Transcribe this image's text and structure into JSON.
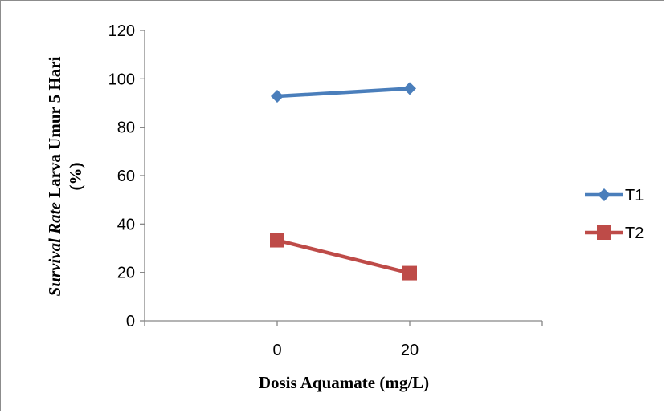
{
  "chart_data": {
    "type": "line",
    "categories": [
      "0",
      "20"
    ],
    "series": [
      {
        "name": "T1",
        "values": [
          92.8,
          96.0
        ],
        "color": "#4a7ebb",
        "marker": "diamond"
      },
      {
        "name": "T2",
        "values": [
          33.3,
          19.7
        ],
        "color": "#be4b48",
        "marker": "square"
      }
    ],
    "ylim": [
      0,
      120
    ],
    "yticks": [
      "0",
      "20",
      "40",
      "60",
      "80",
      "100",
      "120"
    ],
    "xlabel": "Dosis Aquamate (mg/L)",
    "ylabel_italic": "Survival Rate",
    "ylabel_rest": " Larva Umur 5 Hari",
    "ylabel_line2": "(%)",
    "grid": false,
    "legend_position": "right"
  }
}
